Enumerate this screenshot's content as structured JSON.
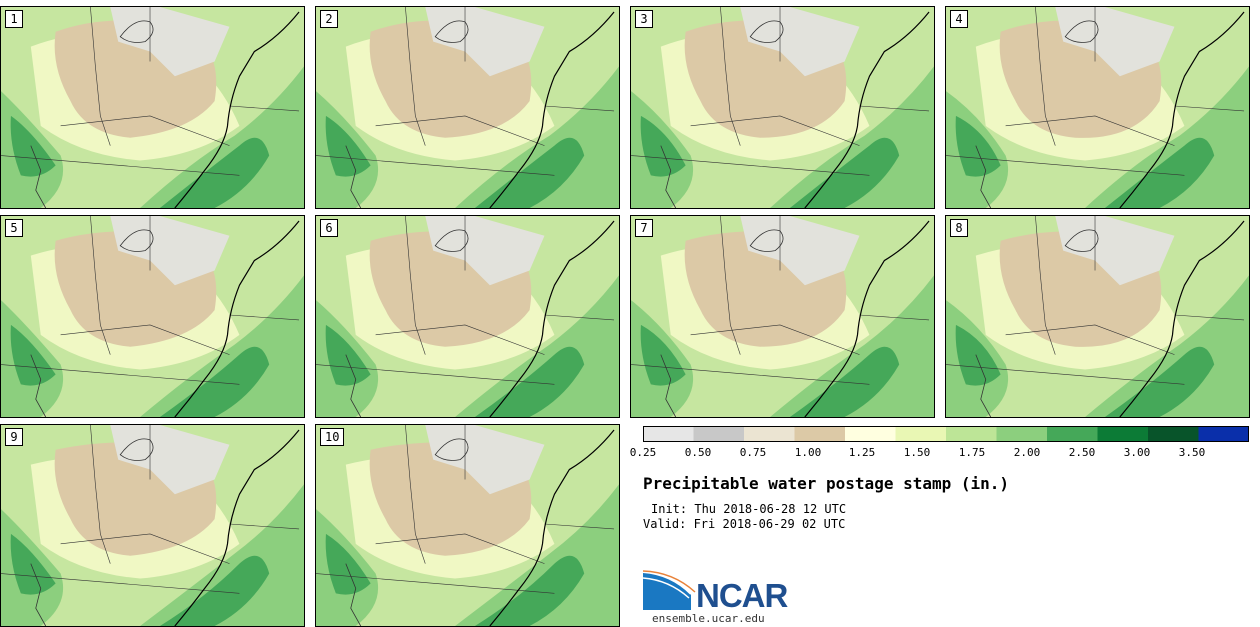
{
  "panels": [
    {
      "label": "1"
    },
    {
      "label": "2"
    },
    {
      "label": "3"
    },
    {
      "label": "4"
    },
    {
      "label": "5"
    },
    {
      "label": "6"
    },
    {
      "label": "7"
    },
    {
      "label": "8"
    },
    {
      "label": "9"
    },
    {
      "label": "10"
    }
  ],
  "colorbar": {
    "ticks": [
      "0.25",
      "0.50",
      "0.75",
      "1.00",
      "1.25",
      "1.50",
      "1.75",
      "2.00",
      "2.50",
      "3.00",
      "3.50"
    ],
    "colors": [
      "#e6e6e6",
      "#c8c8c8",
      "#ebe4d2",
      "#dcc9a6",
      "#ffffe0",
      "#e9f7b4",
      "#bde597",
      "#8ccf7e",
      "#45a859",
      "#0c7b36",
      "#08542a",
      "#0a2faa"
    ]
  },
  "title": "Precipitable water postage stamp (in.)",
  "init": "Init: Thu 2018-06-28 12 UTC",
  "valid": "Valid: Fri 2018-06-29 02 UTC",
  "logo": {
    "text": "NCAR",
    "url": "ensemble.ucar.edu",
    "brand_color": "#1f4f8f",
    "accent_color": "#1a78c2"
  },
  "map_colors": {
    "light_green": "#c6e6a0",
    "pale_yellow": "#f0f8c4",
    "tan": "#dcc9a6",
    "grey": "#e2e2dc",
    "mid_green": "#8ccf7e",
    "dark_green": "#45a859",
    "boundary": "#333333",
    "coast": "#000000"
  }
}
